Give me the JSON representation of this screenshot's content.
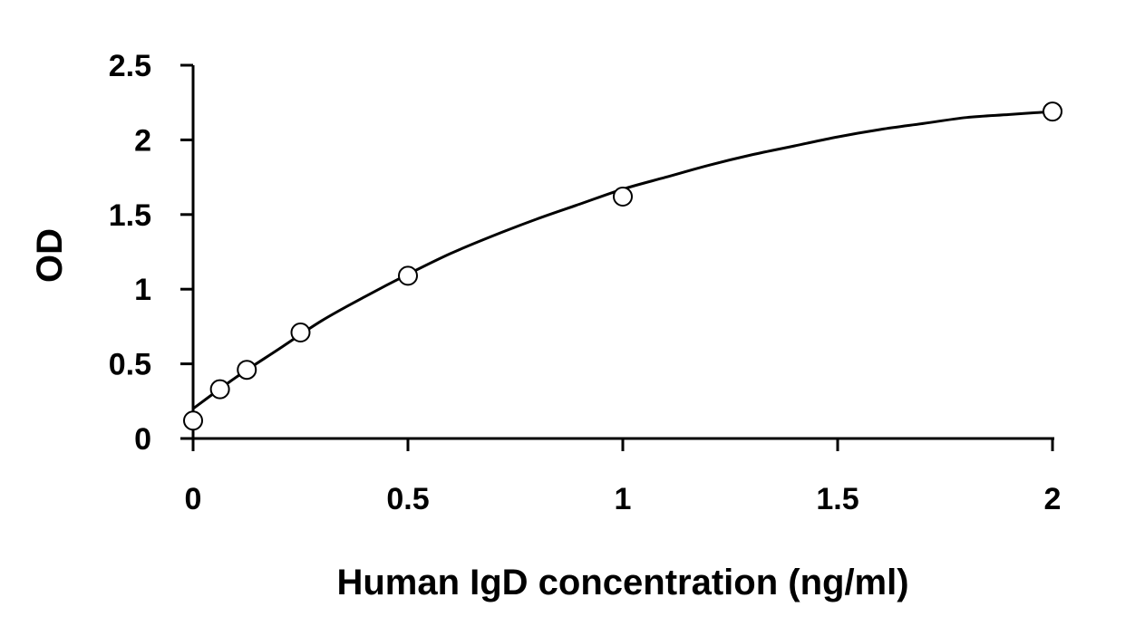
{
  "chart_data": {
    "type": "scatter",
    "title": "",
    "xlabel": "Human IgD concentration (ng/ml)",
    "ylabel": "OD",
    "xlim": [
      0,
      2
    ],
    "ylim": [
      0,
      2.5
    ],
    "x_ticks": [
      "0",
      "0.5",
      "1",
      "1.5",
      "2"
    ],
    "y_ticks": [
      "0",
      "0.5",
      "1",
      "1.5",
      "2",
      "2.5"
    ],
    "grid": false,
    "legend": "none",
    "series": [
      {
        "marker": "open-circle",
        "x": [
          0,
          0.0625,
          0.125,
          0.25,
          0.5,
          1,
          2
        ],
        "y": [
          0.12,
          0.33,
          0.46,
          0.71,
          1.09,
          1.62,
          2.19
        ]
      }
    ],
    "fit_curve": {
      "type": "line",
      "x": [
        0,
        0.1,
        0.2,
        0.3,
        0.4,
        0.5,
        0.6,
        0.7,
        0.8,
        0.9,
        1.0,
        1.1,
        1.2,
        1.3,
        1.4,
        1.5,
        1.6,
        1.7,
        1.8,
        1.9,
        2.0
      ],
      "y": [
        0.2,
        0.41,
        0.6,
        0.79,
        0.95,
        1.1,
        1.24,
        1.36,
        1.47,
        1.57,
        1.67,
        1.75,
        1.83,
        1.9,
        1.96,
        2.02,
        2.07,
        2.11,
        2.15,
        2.17,
        2.19
      ]
    },
    "colors": {
      "axis": "#000000",
      "marker_stroke": "#000000",
      "marker_fill": "#ffffff",
      "curve": "#000000"
    }
  }
}
